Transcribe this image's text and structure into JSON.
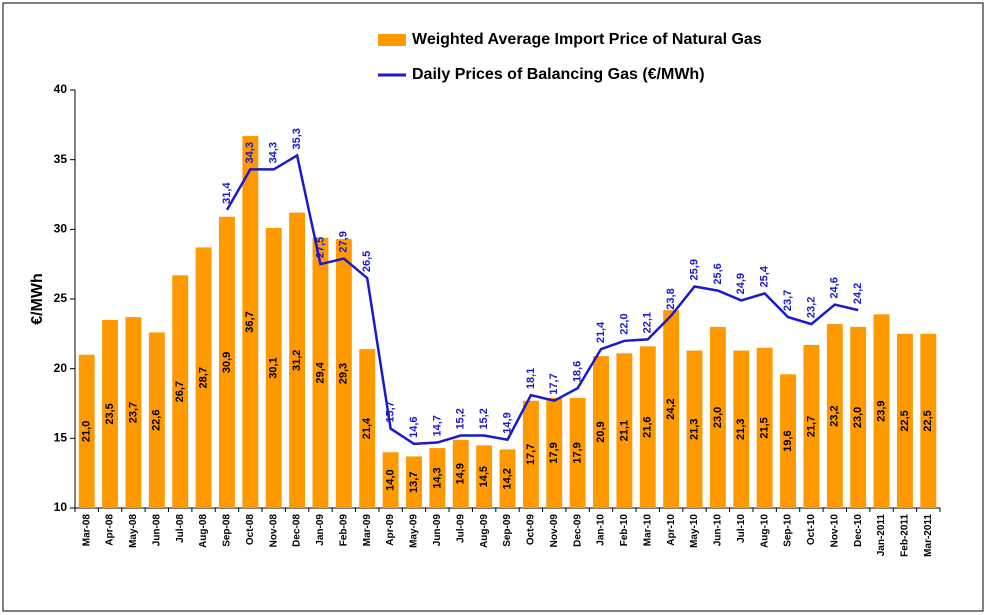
{
  "chart_data": {
    "type": "bar",
    "y_label": "€/MWh",
    "categories": [
      "Mar-08",
      "Apr-08",
      "May-08",
      "Jun-08",
      "Jul-08",
      "Aug-08",
      "Sep-08",
      "Oct-08",
      "Nov-08",
      "Dec-08",
      "Jan-09",
      "Feb-09",
      "Mar-09",
      "Apr-09",
      "May-09",
      "Jun-09",
      "Jul-09",
      "Aug-09",
      "Sep-09",
      "Oct-09",
      "Nov-09",
      "Dec-09",
      "Jan-10",
      "Feb-10",
      "Mar-10",
      "Apr-10",
      "May-10",
      "Jun-10",
      "Jul-10",
      "Aug-10",
      "Sep-10",
      "Oct-10",
      "Nov-10",
      "Dec-10",
      "Jan-2011",
      "Feb-2011",
      "Mar-2011"
    ],
    "series": [
      {
        "name": "Weighted Average Import Price of Natural Gas",
        "type": "bar",
        "color": "#ff9900",
        "values": [
          21.0,
          23.5,
          23.7,
          22.6,
          26.7,
          28.7,
          30.9,
          36.7,
          30.1,
          31.2,
          29.4,
          29.3,
          21.4,
          14.0,
          13.7,
          14.3,
          14.9,
          14.5,
          14.2,
          17.7,
          17.9,
          17.9,
          20.9,
          21.1,
          21.6,
          24.2,
          21.3,
          23.0,
          21.3,
          21.5,
          19.6,
          21.7,
          23.2,
          23.0,
          23.9,
          22.5,
          22.5
        ],
        "value_labels": [
          "21,0",
          "23,5",
          "23,7",
          "22,6",
          "26,7",
          "28,7",
          "30,9",
          "36,7",
          "30,1",
          "31,2",
          "29,4",
          "29,3",
          "21,4",
          "14,0",
          "13,7",
          "14,3",
          "14,9",
          "14,5",
          "14,2",
          "17,7",
          "17,9",
          "17,9",
          "20,9",
          "21,1",
          "21,6",
          "24,2",
          "21,3",
          "23,0",
          "21,3",
          "21,5",
          "19,6",
          "21,7",
          "23,2",
          "23,0",
          "23,9",
          "22,5",
          "22,5"
        ]
      },
      {
        "name": "Daily Prices of Balancing Gas  (€/MWh)",
        "type": "line",
        "color": "#1a1acc",
        "values": [
          null,
          null,
          null,
          null,
          null,
          null,
          31.4,
          34.3,
          34.3,
          35.3,
          27.5,
          27.9,
          26.5,
          15.7,
          14.6,
          14.7,
          15.2,
          15.2,
          14.9,
          18.1,
          17.7,
          18.6,
          21.4,
          22.0,
          22.1,
          23.8,
          25.9,
          25.6,
          24.9,
          25.4,
          23.7,
          23.2,
          24.6,
          24.2,
          null,
          null,
          null
        ],
        "value_labels": [
          null,
          null,
          null,
          null,
          null,
          null,
          "31,4",
          "34,3",
          "34,3",
          "35,3",
          "27,5",
          "27,9",
          "26,5",
          "15,7",
          "14,6",
          "14,7",
          "15,2",
          "15,2",
          "14,9",
          "18,1",
          "17,7",
          "18,6",
          "21,4",
          "22,0",
          "22,1",
          "23,8",
          "25,9",
          "25,6",
          "24,9",
          "25,4",
          "23,7",
          "23,2",
          "24,6",
          "24,2",
          null,
          null,
          null
        ]
      }
    ],
    "ylim": [
      10,
      40
    ],
    "yticks": [
      10,
      15,
      20,
      25,
      30,
      35,
      40
    ],
    "grid": false
  }
}
